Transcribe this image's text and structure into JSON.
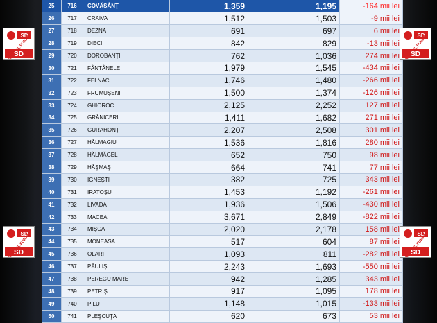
{
  "table": {
    "rows": [
      {
        "nr": "25",
        "cod": "716",
        "name": "COVĂSÂNŢ",
        "v1": "1,359",
        "v2": "1,195",
        "diff": "-164 mii lei",
        "highlight": true
      },
      {
        "nr": "26",
        "cod": "717",
        "name": "CRAIVA",
        "v1": "1,512",
        "v2": "1,503",
        "diff": "-9 mii lei"
      },
      {
        "nr": "27",
        "cod": "718",
        "name": "DEZNA",
        "v1": "691",
        "v2": "697",
        "diff": "6 mii lei"
      },
      {
        "nr": "28",
        "cod": "719",
        "name": "DIECI",
        "v1": "842",
        "v2": "829",
        "diff": "-13 mii lei"
      },
      {
        "nr": "29",
        "cod": "720",
        "name": "DOROBANŢI",
        "v1": "762",
        "v2": "1,036",
        "diff": "274 mii lei"
      },
      {
        "nr": "30",
        "cod": "721",
        "name": "FÂNTÂNELE",
        "v1": "1,979",
        "v2": "1,545",
        "diff": "-434 mii lei"
      },
      {
        "nr": "31",
        "cod": "722",
        "name": "FELNAC",
        "v1": "1,746",
        "v2": "1,480",
        "diff": "-266 mii lei"
      },
      {
        "nr": "32",
        "cod": "723",
        "name": "FRUMUŞENI",
        "v1": "1,500",
        "v2": "1,374",
        "diff": "-126 mii lei"
      },
      {
        "nr": "33",
        "cod": "724",
        "name": "GHIOROC",
        "v1": "2,125",
        "v2": "2,252",
        "diff": "127 mii lei"
      },
      {
        "nr": "34",
        "cod": "725",
        "name": "GRĂNICERI",
        "v1": "1,411",
        "v2": "1,682",
        "diff": "271 mii lei"
      },
      {
        "nr": "35",
        "cod": "726",
        "name": "GURAHONŢ",
        "v1": "2,207",
        "v2": "2,508",
        "diff": "301 mii lei"
      },
      {
        "nr": "36",
        "cod": "727",
        "name": "HĂLMAGIU",
        "v1": "1,536",
        "v2": "1,816",
        "diff": "280 mii lei"
      },
      {
        "nr": "37",
        "cod": "728",
        "name": "HĂLMĂGEL",
        "v1": "652",
        "v2": "750",
        "diff": "98 mii lei"
      },
      {
        "nr": "38",
        "cod": "729",
        "name": "HĂŞMAŞ",
        "v1": "664",
        "v2": "741",
        "diff": "77 mii lei"
      },
      {
        "nr": "39",
        "cod": "730",
        "name": "IGNEŞTI",
        "v1": "382",
        "v2": "725",
        "diff": "343 mii lei"
      },
      {
        "nr": "40",
        "cod": "731",
        "name": "IRATOŞU",
        "v1": "1,453",
        "v2": "1,192",
        "diff": "-261 mii lei"
      },
      {
        "nr": "41",
        "cod": "732",
        "name": "LIVADA",
        "v1": "1,936",
        "v2": "1,506",
        "diff": "-430 mii lei"
      },
      {
        "nr": "42",
        "cod": "733",
        "name": "MACEA",
        "v1": "3,671",
        "v2": "2,849",
        "diff": "-822 mii lei"
      },
      {
        "nr": "43",
        "cod": "734",
        "name": "MIŞCA",
        "v1": "2,020",
        "v2": "2,178",
        "diff": "158 mii lei"
      },
      {
        "nr": "44",
        "cod": "735",
        "name": "MONEASA",
        "v1": "517",
        "v2": "604",
        "diff": "87 mii lei"
      },
      {
        "nr": "45",
        "cod": "736",
        "name": "OLARI",
        "v1": "1,093",
        "v2": "811",
        "diff": "-282 mii lei"
      },
      {
        "nr": "46",
        "cod": "737",
        "name": "PĂULIŞ",
        "v1": "2,243",
        "v2": "1,693",
        "diff": "-550 mii lei"
      },
      {
        "nr": "47",
        "cod": "738",
        "name": "PEREGU MARE",
        "v1": "942",
        "v2": "1,285",
        "diff": "343 mii lei"
      },
      {
        "nr": "48",
        "cod": "739",
        "name": "PETRIŞ",
        "v1": "917",
        "v2": "1,095",
        "diff": "178 mii lei"
      },
      {
        "nr": "49",
        "cod": "740",
        "name": " PILU",
        "v1": "1,148",
        "v2": "1,015",
        "diff": "-133 mii lei"
      },
      {
        "nr": "50",
        "cod": "741",
        "name": "PLEŞCUŢA",
        "v1": "620",
        "v2": "673",
        "diff": "53 mii lei"
      }
    ]
  },
  "logos": [
    {
      "id": "logo-top-left",
      "text": "ARADUL FURAT",
      "initials": "SD"
    },
    {
      "id": "logo-top-right",
      "text": "ARADUL FURAT",
      "initials": "SD"
    },
    {
      "id": "logo-mid-left",
      "text": "ARADUL FURAT",
      "initials": "SD"
    },
    {
      "id": "logo-mid-right",
      "text": "ARADUL FURAT",
      "initials": "SD"
    }
  ],
  "colors": {
    "accent": "#3d6fb3",
    "highlight": "#1e56a8",
    "negative": "#d11a1a",
    "logo_red": "#d41e1e"
  }
}
